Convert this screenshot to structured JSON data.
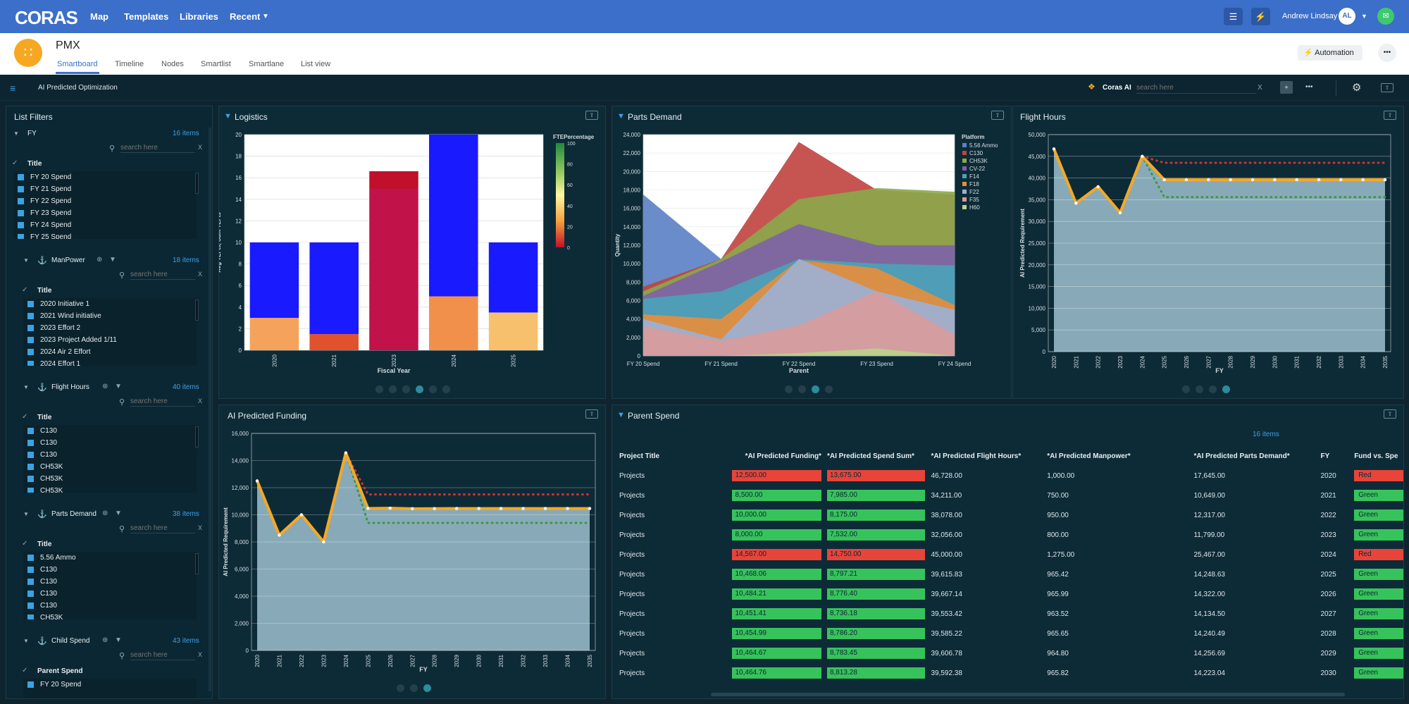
{
  "topbar": {
    "logo": "CORAS",
    "nav": [
      "Map",
      "Templates",
      "Libraries",
      "Recent"
    ],
    "user_name": "Andrew Lindsay",
    "user_initials": "AL"
  },
  "header": {
    "project": "PMX",
    "tabs": [
      "Smartboard",
      "Timeline",
      "Nodes",
      "Smartlist",
      "Smartlane",
      "List view"
    ],
    "automation_label": "Automation",
    "more": "•••"
  },
  "toolbar": {
    "board_name": "AI Predicted Optimization",
    "coras_ai": "Coras AI",
    "search_placeholder": "search here",
    "clear": "X",
    "more": "•••"
  },
  "filters": {
    "title": "List Filters",
    "sections": [
      {
        "name": "FY",
        "count": "16 items",
        "placeholder": "search here",
        "clear": "X",
        "header": "Title",
        "items": [
          "FY 20 Spend",
          "FY 21 Spend",
          "FY 22 Spend",
          "FY 23 Spend",
          "FY 24 Spend",
          "FY 25 Spend"
        ]
      },
      {
        "name": "ManPower",
        "count": "18 items",
        "placeholder": "search here",
        "clear": "X",
        "header": "Title",
        "items": [
          "2020 Initiative 1",
          "2021 Wind initiative",
          "2023 Effort 2",
          "2023 Project Added 1/11",
          "2024 Air 2 Effort",
          "2024 Effort 1"
        ]
      },
      {
        "name": "Flight Hours",
        "count": "40 items",
        "placeholder": "search here",
        "clear": "X",
        "header": "Title",
        "items": [
          "C130",
          "C130",
          "C130",
          "CH53K",
          "CH53K",
          "CH53K"
        ]
      },
      {
        "name": "Parts Demand",
        "count": "38 items",
        "placeholder": "search here",
        "clear": "X",
        "header": "Title",
        "items": [
          "5.56 Ammo",
          "C130",
          "C130",
          "C130",
          "C130",
          "CH53K"
        ]
      },
      {
        "name": "Child Spend",
        "count": "43 items",
        "placeholder": "search here",
        "clear": "X",
        "header": "Parent Spend",
        "items": [
          "FY 20 Spend"
        ]
      }
    ]
  },
  "panels": {
    "logistics": {
      "title": "Logistics"
    },
    "parts_demand": {
      "title": "Parts Demand"
    },
    "flight_hours": {
      "title": "Flight Hours"
    },
    "ai_funding": {
      "title": "AI Predicted Funding"
    },
    "parent_spend": {
      "title": "Parent Spend",
      "count": "16 items"
    }
  },
  "colors": {
    "accent": "#3b6fc9",
    "red": "#e8443a",
    "green": "#37c35b",
    "orange_line": "#f7a823",
    "area": "#8fb1bf"
  },
  "chart_data": [
    {
      "id": "logistics",
      "type": "bar",
      "xlabel": "Fiscal Year",
      "ylabel": "Avg TEFts, Sum TEFts",
      "categories": [
        "2020",
        "2021",
        "2023",
        "2024",
        "2025"
      ],
      "ylim": [
        0,
        20
      ],
      "yticks": [
        0,
        2,
        4,
        6,
        8,
        10,
        12,
        14,
        16,
        18,
        20
      ],
      "series": [
        {
          "values": [
            3,
            1.5,
            15,
            5,
            3.5
          ],
          "colors": [
            "#f5a25d",
            "#e0522e",
            "#c2124a",
            "#f1904a",
            "#f7c06d"
          ]
        },
        {
          "values": [
            7,
            8.5,
            1.6,
            15,
            6.5
          ],
          "colors": [
            "#1a1aff",
            "#1a1aff",
            "#c0102a",
            "#1a1aff",
            "#1a1aff"
          ]
        }
      ],
      "legend": {
        "title": "FTEPercentage",
        "ticks": [
          100,
          80,
          60,
          40,
          20,
          0
        ]
      }
    },
    {
      "id": "parts_demand",
      "type": "area",
      "xlabel": "Parent",
      "ylabel": "Quantity",
      "categories": [
        "FY 20 Spend",
        "FY 21 Spend",
        "FY 22 Spend",
        "FY 23 Spend",
        "FY 24 Spend"
      ],
      "ylim": [
        0,
        24000
      ],
      "yticks": [
        0,
        2000,
        4000,
        6000,
        8000,
        10000,
        12000,
        14000,
        16000,
        18000,
        20000,
        22000,
        24000
      ],
      "legend_title": "Platform",
      "series": [
        {
          "name": "5.56 Ammo",
          "color": "#5b7fc4",
          "values": [
            17500,
            10500,
            10200,
            7200,
            5300
          ]
        },
        {
          "name": "C130",
          "color": "#c0433e",
          "values": [
            7500,
            10500,
            23200,
            18000,
            17500
          ]
        },
        {
          "name": "CH53K",
          "color": "#8aa84a",
          "values": [
            7000,
            10500,
            17000,
            18200,
            17800
          ]
        },
        {
          "name": "CV-22",
          "color": "#7c62a8",
          "values": [
            6500,
            10200,
            14300,
            12000,
            12000
          ]
        },
        {
          "name": "F14",
          "color": "#4aa3b8",
          "values": [
            6200,
            7000,
            10500,
            10000,
            9800
          ]
        },
        {
          "name": "F18",
          "color": "#e88e3a",
          "values": [
            4500,
            4000,
            10400,
            9500,
            5500
          ]
        },
        {
          "name": "F22",
          "color": "#9bb0d6",
          "values": [
            4000,
            1800,
            10500,
            7000,
            5000
          ]
        },
        {
          "name": "F35",
          "color": "#d99b9a",
          "values": [
            3200,
            1600,
            3300,
            7000,
            2300
          ]
        },
        {
          "name": "H60",
          "color": "#b9d38a",
          "values": [
            0,
            0,
            300,
            800,
            0
          ]
        }
      ]
    },
    {
      "id": "flight_hours",
      "type": "line",
      "xlabel": "FY",
      "ylabel": "AI Predicted Requirement",
      "categories": [
        "2020",
        "2021",
        "2022",
        "2023",
        "2024",
        "2025",
        "2026",
        "2027",
        "2028",
        "2029",
        "2030",
        "2031",
        "2032",
        "2033",
        "2034",
        "2035"
      ],
      "ylim": [
        0,
        50000
      ],
      "yticks": [
        0,
        5000,
        10000,
        15000,
        20000,
        25000,
        30000,
        35000,
        40000,
        45000,
        50000
      ],
      "series": [
        {
          "name": "prediction",
          "color": "#f7a823",
          "values": [
            46700,
            34200,
            38000,
            32000,
            45000,
            39600,
            39600,
            39600,
            39600,
            39600,
            39600,
            39600,
            39600,
            39600,
            39600,
            39600
          ]
        },
        {
          "name": "upper",
          "color": "#cc3333",
          "values": [
            null,
            null,
            null,
            null,
            45000,
            43500,
            43500,
            43500,
            43500,
            43500,
            43500,
            43500,
            43500,
            43500,
            43500,
            43500
          ]
        },
        {
          "name": "lower",
          "color": "#3a9a3a",
          "values": [
            null,
            null,
            null,
            null,
            45000,
            35600,
            35600,
            35600,
            35600,
            35600,
            35600,
            35600,
            35600,
            35600,
            35600,
            35600
          ]
        }
      ]
    },
    {
      "id": "ai_funding",
      "type": "line",
      "xlabel": "FY",
      "ylabel": "AI Predicted Requirement",
      "categories": [
        "2020",
        "2021",
        "2022",
        "2023",
        "2024",
        "2025",
        "2026",
        "2027",
        "2028",
        "2029",
        "2030",
        "2031",
        "2032",
        "2033",
        "2034",
        "2035"
      ],
      "ylim": [
        0,
        16000
      ],
      "yticks": [
        0,
        2000,
        4000,
        6000,
        8000,
        10000,
        12000,
        14000,
        16000
      ],
      "series": [
        {
          "name": "prediction",
          "color": "#f7a823",
          "values": [
            12500,
            8500,
            10000,
            8000,
            14567,
            10468,
            10484,
            10451,
            10454,
            10464,
            10464,
            10464,
            10464,
            10464,
            10464,
            10464
          ]
        },
        {
          "name": "upper",
          "color": "#cc3333",
          "values": [
            null,
            null,
            null,
            null,
            14567,
            11500,
            11500,
            11500,
            11500,
            11500,
            11500,
            11500,
            11500,
            11500,
            11500,
            11500
          ]
        },
        {
          "name": "lower",
          "color": "#3a9a3a",
          "values": [
            null,
            null,
            null,
            null,
            14567,
            9400,
            9400,
            9400,
            9400,
            9400,
            9400,
            9400,
            9400,
            9400,
            9400,
            9400
          ]
        }
      ]
    }
  ],
  "parent_spend_table": {
    "columns": [
      "Project Title",
      "*AI Predicted Funding*",
      "*AI Predicted Spend Sum*",
      "*AI Predicted Flight Hours*",
      "*AI Predicted Manpower*",
      "*AI Predicted Parts Demand*",
      "FY",
      "Fund vs. Spe"
    ],
    "rows": [
      {
        "title": "Projects",
        "funding": "12,500.00",
        "spend": "13,675.00",
        "hours": "46,728.00",
        "manpower": "1,000.00",
        "parts": "17,645.00",
        "fy": "2020",
        "status": "Red"
      },
      {
        "title": "Projects",
        "funding": "8,500.00",
        "spend": "7,985.00",
        "hours": "34,211.00",
        "manpower": "750.00",
        "parts": "10,649.00",
        "fy": "2021",
        "status": "Green"
      },
      {
        "title": "Projects",
        "funding": "10,000.00",
        "spend": "8,175.00",
        "hours": "38,078.00",
        "manpower": "950.00",
        "parts": "12,317.00",
        "fy": "2022",
        "status": "Green"
      },
      {
        "title": "Projects",
        "funding": "8,000.00",
        "spend": "7,532.00",
        "hours": "32,056.00",
        "manpower": "800.00",
        "parts": "11,799.00",
        "fy": "2023",
        "status": "Green"
      },
      {
        "title": "Projects",
        "funding": "14,567.00",
        "spend": "14,750.00",
        "hours": "45,000.00",
        "manpower": "1,275.00",
        "parts": "25,467.00",
        "fy": "2024",
        "status": "Red"
      },
      {
        "title": "Projects",
        "funding": "10,468.06",
        "spend": "8,797.21",
        "hours": "39,615.83",
        "manpower": "965.42",
        "parts": "14,248.63",
        "fy": "2025",
        "status": "Green"
      },
      {
        "title": "Projects",
        "funding": "10,484.21",
        "spend": "8,776.40",
        "hours": "39,667.14",
        "manpower": "965.99",
        "parts": "14,322.00",
        "fy": "2026",
        "status": "Green"
      },
      {
        "title": "Projects",
        "funding": "10,451.41",
        "spend": "8,736.18",
        "hours": "39,553.42",
        "manpower": "963.52",
        "parts": "14,134.50",
        "fy": "2027",
        "status": "Green"
      },
      {
        "title": "Projects",
        "funding": "10,454.99",
        "spend": "8,786.20",
        "hours": "39,585.22",
        "manpower": "965.65",
        "parts": "14,240.49",
        "fy": "2028",
        "status": "Green"
      },
      {
        "title": "Projects",
        "funding": "10,464.67",
        "spend": "8,783.45",
        "hours": "39,606.78",
        "manpower": "964.80",
        "parts": "14,256.69",
        "fy": "2029",
        "status": "Green"
      },
      {
        "title": "Projects",
        "funding": "10,464.76",
        "spend": "8,813.28",
        "hours": "39,592.38",
        "manpower": "965.82",
        "parts": "14,223.04",
        "fy": "2030",
        "status": "Green"
      }
    ]
  }
}
